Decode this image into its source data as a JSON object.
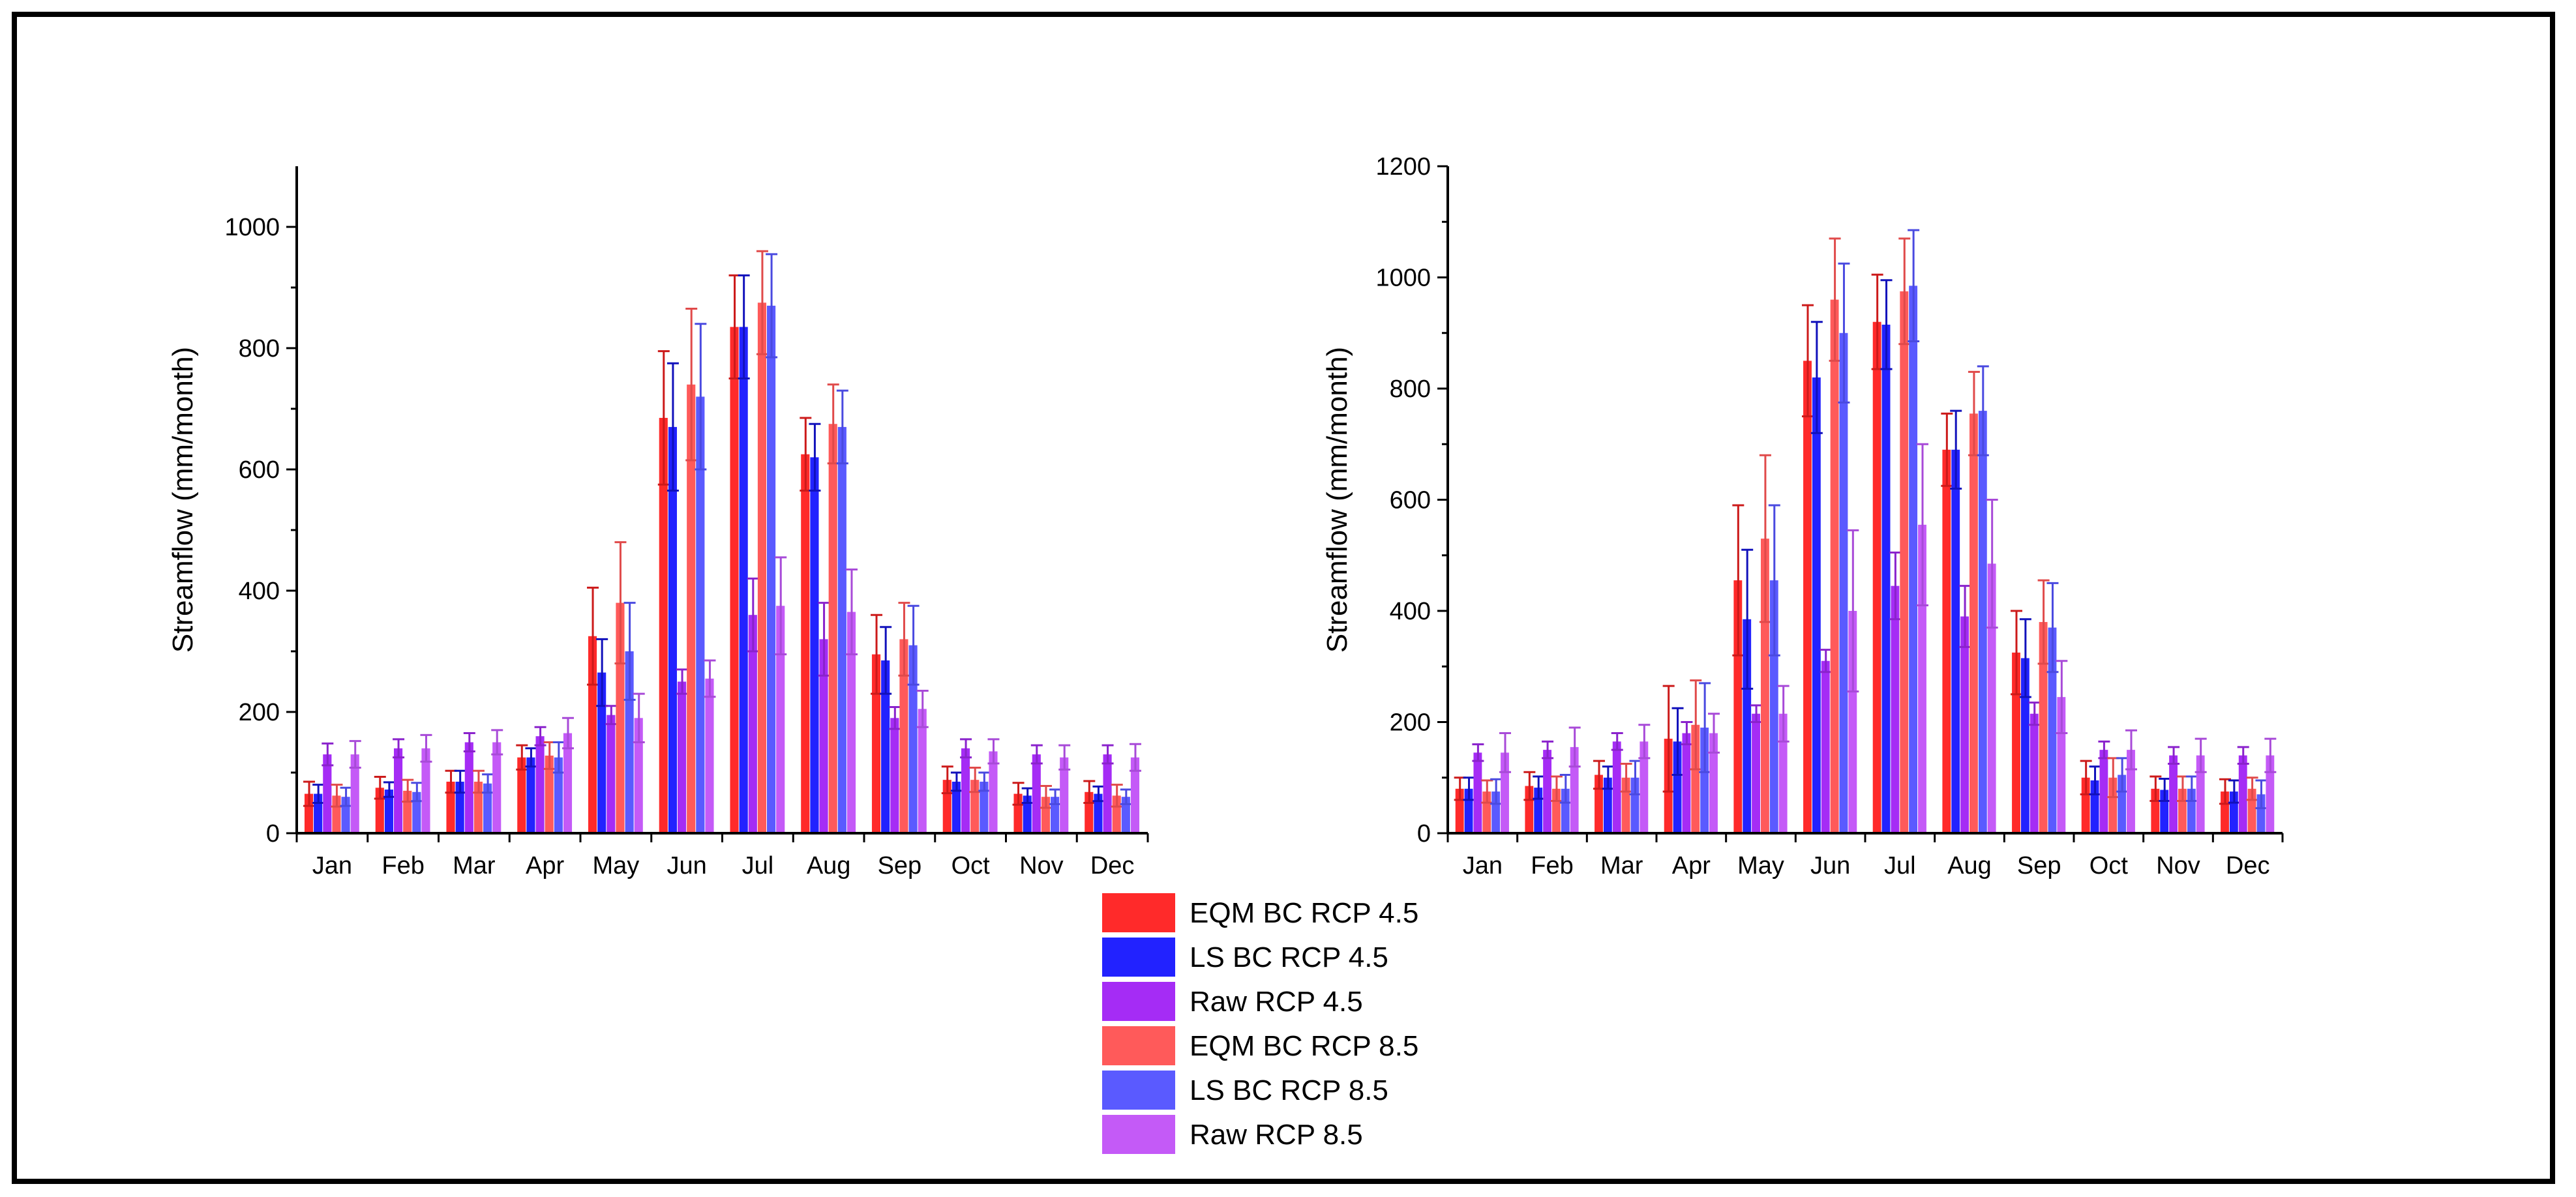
{
  "chart_data": [
    {
      "type": "bar",
      "title": "",
      "xlabel": "",
      "ylabel": "Streamflow (mm/month)",
      "ylim": [
        0,
        1100
      ],
      "yticks": [
        0,
        200,
        400,
        600,
        800,
        1000
      ],
      "categories": [
        "Jan",
        "Feb",
        "Mar",
        "Apr",
        "May",
        "Jun",
        "Jul",
        "Aug",
        "Sep",
        "Oct",
        "Nov",
        "Dec"
      ],
      "series": [
        {
          "name": "EQM BC RCP 4.5",
          "values": [
            65,
            75,
            85,
            125,
            325,
            685,
            835,
            625,
            295,
            88,
            65,
            68
          ],
          "errors": [
            20,
            18,
            18,
            20,
            80,
            110,
            85,
            60,
            65,
            22,
            18,
            18
          ]
        },
        {
          "name": "LS BC RCP 4.5",
          "values": [
            65,
            72,
            85,
            125,
            265,
            670,
            835,
            620,
            285,
            85,
            62,
            65
          ],
          "errors": [
            15,
            12,
            18,
            15,
            55,
            105,
            85,
            55,
            55,
            15,
            12,
            12
          ]
        },
        {
          "name": "Raw RCP 4.5",
          "values": [
            130,
            140,
            150,
            160,
            195,
            250,
            360,
            320,
            190,
            140,
            130,
            130
          ],
          "errors": [
            18,
            15,
            15,
            15,
            15,
            20,
            60,
            60,
            18,
            15,
            15,
            15
          ]
        },
        {
          "name": "EQM BC RCP 8.5",
          "values": [
            62,
            70,
            85,
            128,
            380,
            740,
            875,
            675,
            320,
            88,
            60,
            62
          ],
          "errors": [
            18,
            18,
            18,
            22,
            100,
            125,
            85,
            65,
            60,
            20,
            18,
            18
          ]
        },
        {
          "name": "LS BC RCP 8.5",
          "values": [
            60,
            68,
            82,
            125,
            300,
            720,
            870,
            670,
            310,
            85,
            60,
            60
          ],
          "errors": [
            15,
            15,
            15,
            25,
            80,
            120,
            85,
            60,
            65,
            15,
            12,
            12
          ]
        },
        {
          "name": "Raw RCP 8.5",
          "values": [
            130,
            140,
            150,
            165,
            190,
            255,
            375,
            365,
            205,
            135,
            125,
            125
          ],
          "errors": [
            22,
            22,
            20,
            25,
            40,
            30,
            80,
            70,
            30,
            20,
            20,
            22
          ]
        }
      ]
    },
    {
      "type": "bar",
      "title": "",
      "xlabel": "",
      "ylabel": "Streamflow (mm/month)",
      "ylim": [
        0,
        1200
      ],
      "yticks": [
        0,
        200,
        400,
        600,
        800,
        1000,
        1200
      ],
      "categories": [
        "Jan",
        "Feb",
        "Mar",
        "Apr",
        "May",
        "Jun",
        "Jul",
        "Aug",
        "Sep",
        "Oct",
        "Nov",
        "Dec"
      ],
      "series": [
        {
          "name": "EQM BC RCP 4.5",
          "values": [
            80,
            85,
            105,
            170,
            455,
            850,
            920,
            690,
            325,
            100,
            80,
            75
          ],
          "errors": [
            20,
            25,
            25,
            95,
            135,
            100,
            85,
            65,
            75,
            30,
            22,
            22
          ]
        },
        {
          "name": "LS BC RCP 4.5",
          "values": [
            80,
            82,
            100,
            165,
            385,
            820,
            915,
            690,
            315,
            95,
            78,
            75
          ],
          "errors": [
            20,
            20,
            20,
            60,
            125,
            100,
            80,
            70,
            70,
            25,
            20,
            20
          ]
        },
        {
          "name": "Raw RCP 4.5",
          "values": [
            145,
            150,
            165,
            180,
            215,
            310,
            445,
            390,
            215,
            150,
            140,
            140
          ],
          "errors": [
            15,
            15,
            15,
            20,
            15,
            20,
            60,
            55,
            20,
            15,
            15,
            15
          ]
        },
        {
          "name": "EQM BC RCP 8.5",
          "values": [
            75,
            80,
            100,
            195,
            530,
            960,
            975,
            755,
            380,
            100,
            80,
            80
          ],
          "errors": [
            20,
            22,
            25,
            80,
            150,
            110,
            95,
            75,
            75,
            35,
            22,
            20
          ]
        },
        {
          "name": "LS BC RCP 8.5",
          "values": [
            75,
            80,
            100,
            190,
            455,
            900,
            985,
            760,
            370,
            105,
            80,
            70
          ],
          "errors": [
            22,
            25,
            30,
            80,
            135,
            125,
            100,
            80,
            80,
            30,
            22,
            25
          ]
        },
        {
          "name": "Raw RCP 8.5",
          "values": [
            145,
            155,
            165,
            180,
            215,
            400,
            555,
            485,
            245,
            150,
            140,
            140
          ],
          "errors": [
            35,
            35,
            30,
            35,
            50,
            145,
            145,
            115,
            65,
            35,
            30,
            30
          ]
        }
      ]
    }
  ],
  "legend": {
    "entries": [
      {
        "label": "EQM BC RCP 4.5",
        "color": "#ff2a2a"
      },
      {
        "label": "LS BC RCP 4.5",
        "color": "#2222ff"
      },
      {
        "label": "Raw RCP 4.5",
        "color": "#a52cf5"
      },
      {
        "label": "EQM BC RCP 8.5",
        "color": "#ff5a5a"
      },
      {
        "label": "LS BC RCP 8.5",
        "color": "#5a5aff"
      },
      {
        "label": "Raw RCP 8.5",
        "color": "#c45af7"
      }
    ]
  },
  "colors": {
    "series": [
      "#ff2a2a",
      "#2222ff",
      "#a52cf5",
      "#ff5a5a",
      "#5a5aff",
      "#c45af7"
    ],
    "error_bars": [
      "#cc1a1a",
      "#1111bb",
      "#8a22cc",
      "#e04a4a",
      "#4a4ae0",
      "#a84ad8"
    ]
  }
}
